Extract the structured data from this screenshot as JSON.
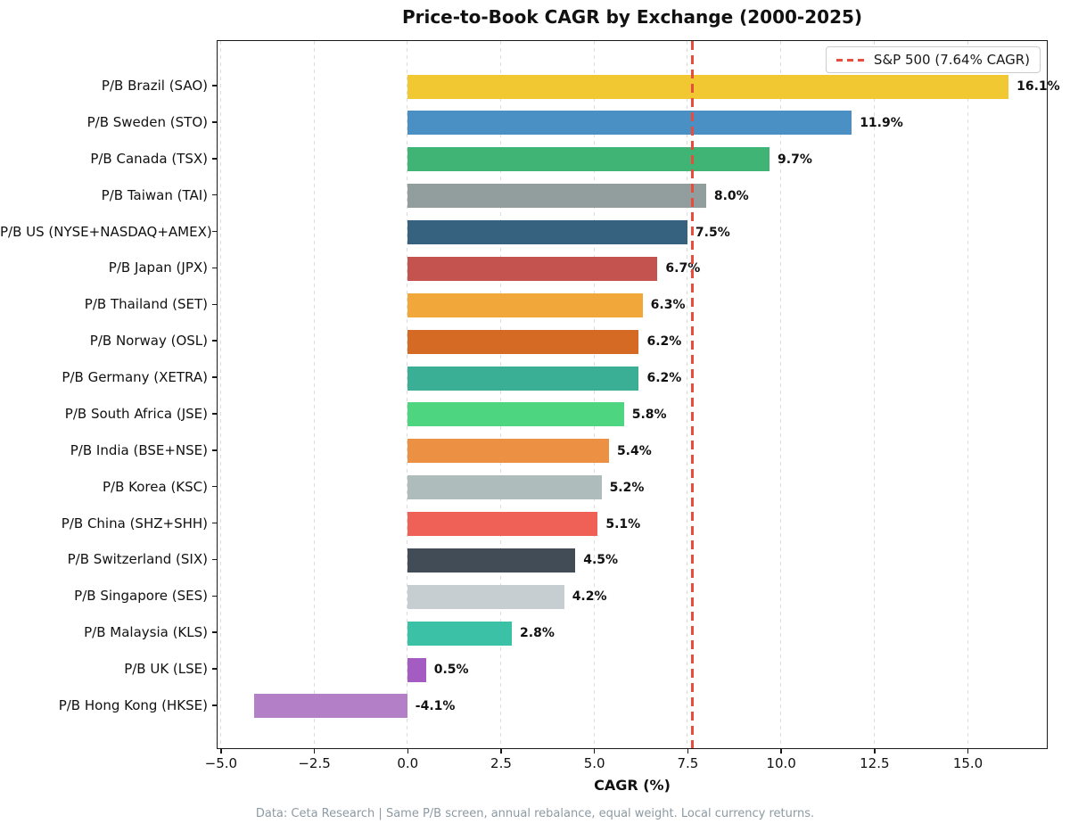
{
  "title": "Price-to-Book CAGR by Exchange (2000-2025)",
  "footer": "Data: Ceta Research | Same P/B screen, annual rebalance, equal weight. Local currency returns.",
  "legend": {
    "label": "S&P 500 (7.64% CAGR)",
    "position": "upper right",
    "line_style": "dashed",
    "line_color": "#E74C3C"
  },
  "chart_data": {
    "type": "bar",
    "orientation": "horizontal",
    "title": "Price-to-Book CAGR by Exchange (2000-2025)",
    "xlabel": "CAGR (%)",
    "ylabel": "",
    "xlim": [
      -5.08,
      17.1
    ],
    "xticks": [
      -5.0,
      -2.5,
      0.0,
      2.5,
      5.0,
      7.5,
      10.0,
      12.5,
      15.0
    ],
    "xtick_labels": [
      "−5.0",
      "−2.5",
      "0.0",
      "2.5",
      "5.0",
      "7.5",
      "10.0",
      "12.5",
      "15.0"
    ],
    "grid": "vertical-dashed",
    "categories": [
      "P/B Brazil (SAO)",
      "P/B Sweden (STO)",
      "P/B Canada (TSX)",
      "P/B Taiwan (TAI)",
      "P/B US (NYSE+NASDAQ+AMEX)",
      "P/B Japan (JPX)",
      "P/B Thailand (SET)",
      "P/B Norway (OSL)",
      "P/B Germany (XETRA)",
      "P/B South Africa (JSE)",
      "P/B India (BSE+NSE)",
      "P/B Korea (KSC)",
      "P/B China (SHZ+SHH)",
      "P/B Switzerland (SIX)",
      "P/B Singapore (SES)",
      "P/B Malaysia (KLS)",
      "P/B UK (LSE)",
      "P/B Hong Kong (HKSE)"
    ],
    "values": [
      16.1,
      11.9,
      9.7,
      8.0,
      7.5,
      6.7,
      6.3,
      6.2,
      6.2,
      5.8,
      5.4,
      5.2,
      5.1,
      4.5,
      4.2,
      2.8,
      0.5,
      -4.1
    ],
    "value_labels": [
      "16.1%",
      "11.9%",
      "9.7%",
      "8.0%",
      "7.5%",
      "6.7%",
      "6.3%",
      "6.2%",
      "6.2%",
      "5.8%",
      "5.4%",
      "5.2%",
      "5.1%",
      "4.5%",
      "4.2%",
      "2.8%",
      "0.5%",
      "-4.1%"
    ],
    "bar_colors": [
      "#F1C732",
      "#4A90C4",
      "#3FB474",
      "#929E9D",
      "#36617F",
      "#C4524E",
      "#F2A73B",
      "#D46A24",
      "#3AAF96",
      "#4ED57F",
      "#EC9143",
      "#AFBCBC",
      "#EF6056",
      "#424C57",
      "#C7CED2",
      "#3BC2A6",
      "#A45CC2",
      "#B37FC6"
    ],
    "reference_line": {
      "value": 7.64,
      "label": "S&P 500 (7.64% CAGR)",
      "color": "#E74C3C",
      "style": "dashed"
    }
  },
  "colors": {
    "spine": "#1a1a1a",
    "grid": "#dcdcdc",
    "background": "#ffffff",
    "footer_text": "#8C9AA3",
    "reference": "#E74C3C"
  }
}
